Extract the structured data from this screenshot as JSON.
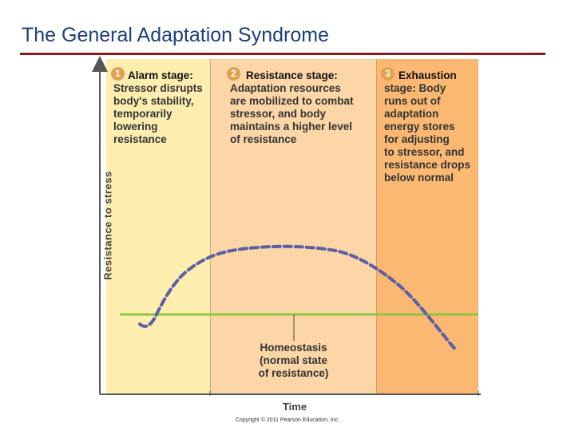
{
  "slide": {
    "title": "The General Adaptation Syndrome",
    "copyright": "Copyright © 2011 Pearson Education, Inc."
  },
  "diagram": {
    "y_axis_label": "Resistance to stress",
    "x_axis_label": "Time",
    "stages": [
      {
        "number": "1",
        "label": "Alarm stage:",
        "lines": [
          "Stressor disrupts",
          "body's stability,",
          "temporarily",
          "lowering",
          "resistance"
        ]
      },
      {
        "number": "2",
        "label": "Resistance stage:",
        "lines": [
          "Adaptation resources",
          "are mobilized to combat",
          "stressor, and body",
          "maintains a higher level",
          "of resistance"
        ]
      },
      {
        "number": "3",
        "label": "Exhaustion",
        "lines": [
          "stage: Body",
          "runs out of",
          "adaptation",
          "energy stores",
          "for adjusting",
          "to stressor, and",
          "resistance drops",
          "below normal"
        ]
      }
    ],
    "annotation_lines": [
      "Homeostasis",
      "(normal state",
      "of resistance)"
    ],
    "colors": {
      "stage_1": "#fdeeb0",
      "stage_2": "#fcd6a6",
      "stage_3": "#fbb872",
      "homeostasis_line": "#8dc63f",
      "resistance_curve": "#5b5fa6",
      "badge": "#e0a24e",
      "title": "#1f3f7f"
    }
  }
}
